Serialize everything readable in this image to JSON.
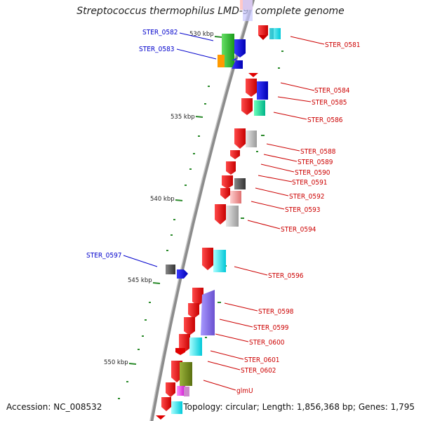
{
  "title": "Streptococcus thermophilus LMD-9, complete genome",
  "accession": "Accession: NC_008532",
  "summary": "Topology: circular; Length: 1,856,368 bp; Genes: 1,795",
  "ticks": [
    "530 kbp",
    "535 kbp",
    "540 kbp",
    "545 kbp",
    "550 kbp"
  ],
  "genes_left": [
    "STER_0582",
    "STER_0583",
    "STER_0597"
  ],
  "genes_right": [
    "STER_0581",
    "STER_0584",
    "STER_0585",
    "STER_0586",
    "STER_0588",
    "STER_0589",
    "STER_0590",
    "STER_0591",
    "STER_0592",
    "STER_0593",
    "STER_0594",
    "STER_0596",
    "STER_0598",
    "STER_0599",
    "STER_0600",
    "STER_0601",
    "STER_0602",
    "glmU"
  ],
  "colors": {
    "forward_label": "#0000cc",
    "reverse_label": "#cc0000",
    "backbone": "#8c8c8c",
    "tick": "#2a8a2a"
  }
}
